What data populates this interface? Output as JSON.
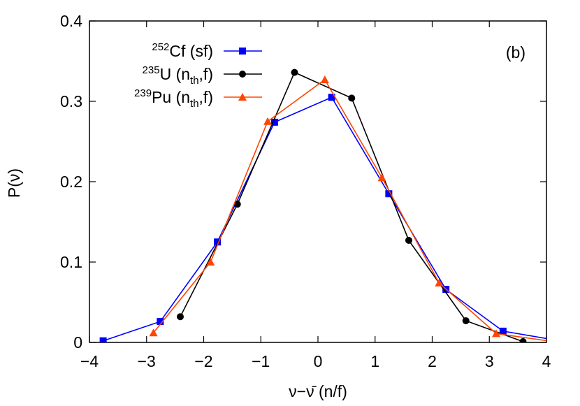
{
  "chart_data": {
    "type": "line",
    "panel_label": "(b)",
    "xlabel": "ν−ν̄ (n/f)",
    "ylabel": "P(ν)",
    "xlim": [
      -4,
      4
    ],
    "ylim": [
      0,
      0.4
    ],
    "xticks": [
      "−4",
      "−3",
      "−2",
      "−1",
      "0",
      "1",
      "2",
      "3",
      "4"
    ],
    "yticks": [
      "0",
      "0.1",
      "0.2",
      "0.3",
      "0.4"
    ],
    "grid": false,
    "legend_position": "top-left",
    "series": [
      {
        "name": "252Cf (sf)",
        "label_sup": "252",
        "label_main": "Cf (sf)",
        "label_sub": "",
        "label_tail": "",
        "color": "#0000ff",
        "marker": "square",
        "x": [
          -3.76,
          -2.76,
          -1.76,
          -0.76,
          0.24,
          1.24,
          2.24,
          3.24,
          4.24
        ],
        "y": [
          0.002,
          0.026,
          0.125,
          0.274,
          0.305,
          0.185,
          0.066,
          0.014,
          0.002
        ]
      },
      {
        "name": "235U (nth,f)",
        "label_sup": "235",
        "label_main": "U (n",
        "label_sub": "th",
        "label_tail": ",f)",
        "color": "#000000",
        "marker": "circle",
        "x": [
          -2.41,
          -1.41,
          -0.41,
          0.59,
          1.59,
          2.59,
          3.59
        ],
        "y": [
          0.032,
          0.172,
          0.336,
          0.304,
          0.127,
          0.027,
          0.001
        ]
      },
      {
        "name": "239Pu (nth,f)",
        "label_sup": "239",
        "label_main": "Pu (n",
        "label_sub": "th",
        "label_tail": ",f)",
        "color": "#ff4500",
        "marker": "triangle",
        "x": [
          -2.88,
          -1.88,
          -0.88,
          0.12,
          1.12,
          2.12,
          3.12,
          4.12
        ],
        "y": [
          0.012,
          0.1,
          0.275,
          0.327,
          0.205,
          0.074,
          0.011,
          0.001
        ]
      }
    ]
  }
}
